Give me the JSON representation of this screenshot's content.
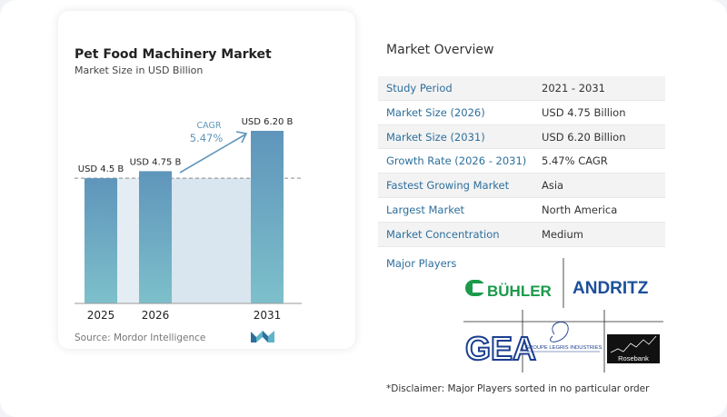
{
  "chart": {
    "title": "Pet Food Machinery Market",
    "subtitle": "Market Size in USD Billion",
    "source": "Source:  Mordor Intelligence",
    "cagr_label": "CAGR",
    "cagr_value": "5.47%",
    "colors": {
      "bar_top": "#5f95bb",
      "bar_bottom": "#7dc0cb",
      "band": "#d9e6ef",
      "arrow": "#5f95bb",
      "cagr_text": "#5f95bb"
    }
  },
  "chart_data": {
    "type": "bar",
    "categories": [
      "2025",
      "2026",
      "2031"
    ],
    "values": [
      4.5,
      4.75,
      6.2
    ],
    "value_labels": [
      "USD 4.5 B",
      "USD 4.75 B",
      "USD 6.20 B"
    ],
    "title": "Pet Food Machinery Market",
    "subtitle": "Market Size in USD Billion",
    "ylabel": "",
    "ylim": [
      0,
      6.2
    ],
    "grid": false,
    "reference_line": 4.5
  },
  "overview": {
    "title": "Market Overview",
    "rows": [
      {
        "label": "Study Period",
        "value": "2021 - 2031"
      },
      {
        "label": "Market Size (2026)",
        "value": "USD 4.75 Billion"
      },
      {
        "label": "Market Size (2031)",
        "value": "USD 6.20 Billion"
      },
      {
        "label": "Growth Rate (2026 - 2031)",
        "value": "5.47% CAGR"
      },
      {
        "label": "Fastest Growing Market",
        "value": "Asia"
      },
      {
        "label": "Largest Market",
        "value": "North America"
      },
      {
        "label": "Market Concentration",
        "value": "Medium"
      }
    ],
    "players_title": "Major Players",
    "players": [
      "BÜHLER",
      "ANDRITZ",
      "GEA",
      "GROUPE LEGRIS INDUSTRIES",
      "Rosebank"
    ],
    "disclaimer": "*Disclaimer: Major Players sorted in no particular order"
  }
}
